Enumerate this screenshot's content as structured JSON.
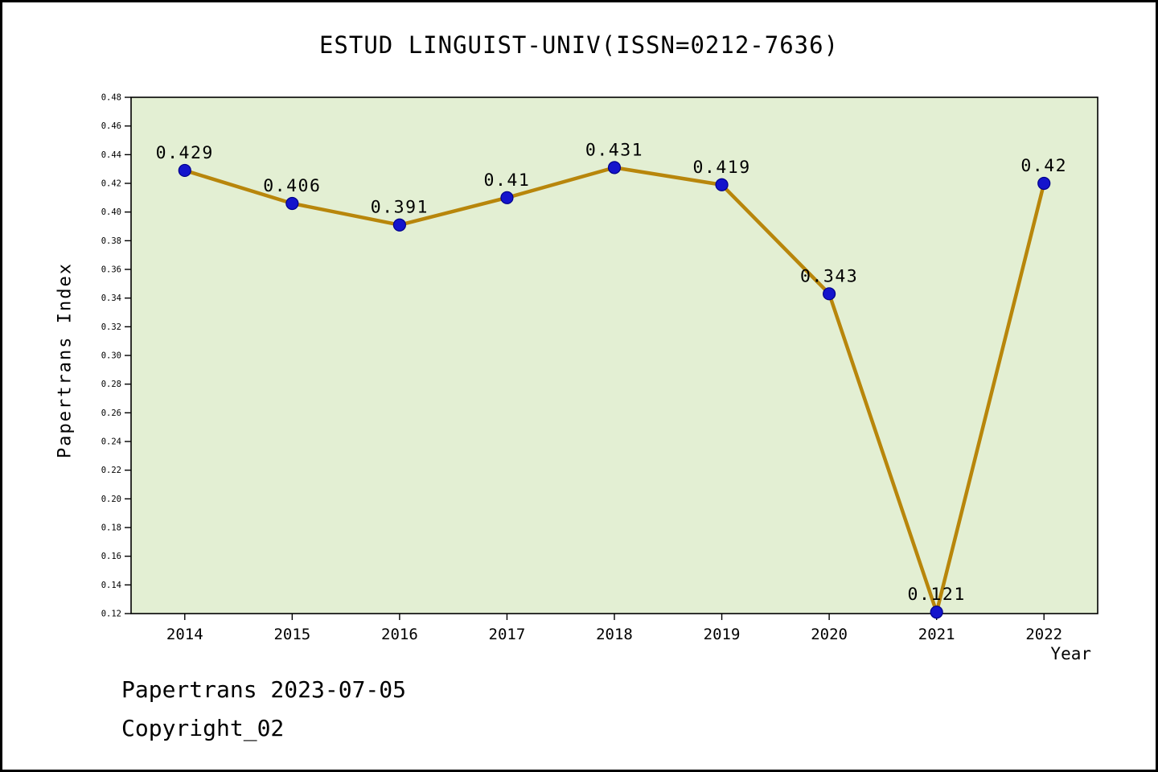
{
  "title": "ESTUD LINGUIST-UNIV(ISSN=0212-7636)",
  "footer": {
    "line1": "Papertrans 2023-07-05",
    "line2": "Copyright_02"
  },
  "chart_data": {
    "type": "line",
    "title": "ESTUD LINGUIST-UNIV(ISSN=0212-7636)",
    "categories": [
      "2014",
      "2015",
      "2016",
      "2017",
      "2018",
      "2019",
      "2020",
      "2021",
      "2022"
    ],
    "values": [
      0.429,
      0.406,
      0.391,
      0.41,
      0.431,
      0.419,
      0.343,
      0.121,
      0.42
    ],
    "point_labels": [
      "0.429",
      "0.406",
      "0.391",
      "0.41",
      "0.431",
      "0.419",
      "0.343",
      "0.121",
      "0.42"
    ],
    "xlabel": "Year",
    "ylabel": "Papertrans Index",
    "ylim": [
      0.12,
      0.48
    ],
    "ytick_step": 0.02,
    "grid": false,
    "legend": "none",
    "colors": {
      "line": "#B8860B",
      "marker_fill": "#1414CC",
      "marker_edge": "#00008B",
      "plot_bg": "#E3EFD3",
      "axis": "#000000",
      "text": "#000000"
    }
  }
}
